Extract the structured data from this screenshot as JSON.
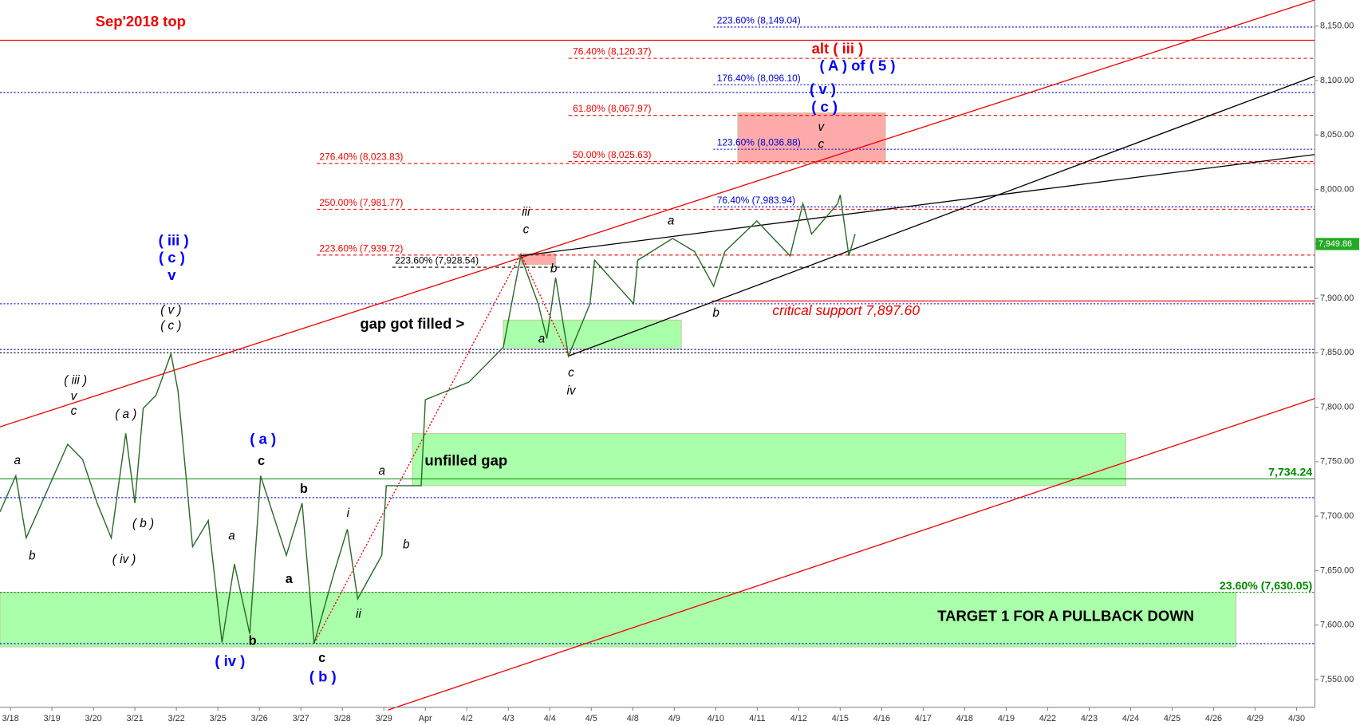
{
  "chart_data": {
    "type": "line",
    "xlim": [
      -0.251,
      31.44
    ],
    "xticks": [
      {
        "value": 0,
        "label": "3/18"
      },
      {
        "value": 1,
        "label": "3/19"
      },
      {
        "value": 2,
        "label": "3/20"
      },
      {
        "value": 3,
        "label": "3/21"
      },
      {
        "value": 4,
        "label": "3/22"
      },
      {
        "value": 5,
        "label": "3/25"
      },
      {
        "value": 6,
        "label": "3/26"
      },
      {
        "value": 7,
        "label": "3/27"
      },
      {
        "value": 8,
        "label": "3/28"
      },
      {
        "value": 9,
        "label": "3/29"
      },
      {
        "value": 10,
        "label": "Apr"
      },
      {
        "value": 11,
        "label": "4/2"
      },
      {
        "value": 12,
        "label": "4/3"
      },
      {
        "value": 13,
        "label": "4/4"
      },
      {
        "value": 14,
        "label": "4/5"
      },
      {
        "value": 15,
        "label": "4/8"
      },
      {
        "value": 16,
        "label": "4/9"
      },
      {
        "value": 17,
        "label": "4/10"
      },
      {
        "value": 18,
        "label": "4/11"
      },
      {
        "value": 19,
        "label": "4/12"
      },
      {
        "value": 20,
        "label": "4/15"
      },
      {
        "value": 21,
        "label": "4/16"
      },
      {
        "value": 22,
        "label": "4/17"
      },
      {
        "value": 23,
        "label": "4/18"
      },
      {
        "value": 24,
        "label": "4/19"
      },
      {
        "value": 25,
        "label": "4/22"
      },
      {
        "value": 26,
        "label": "4/23"
      },
      {
        "value": 27,
        "label": "4/24"
      },
      {
        "value": 28,
        "label": "4/25"
      },
      {
        "value": 29,
        "label": "4/26"
      },
      {
        "value": 30,
        "label": "4/29"
      },
      {
        "value": 31,
        "label": "4/30"
      }
    ],
    "ylim": [
      7524.5,
      8173.9
    ],
    "yticks": [
      {
        "value": 7550,
        "label": "7,550.00"
      },
      {
        "value": 7600,
        "label": "7,600.00"
      },
      {
        "value": 7650,
        "label": "7,650.00"
      },
      {
        "value": 7700,
        "label": "7,700.00"
      },
      {
        "value": 7750,
        "label": "7,750.00"
      },
      {
        "value": 7800,
        "label": "7,800.00"
      },
      {
        "value": 7850,
        "label": "7,850.00"
      },
      {
        "value": 7900,
        "label": "7,900.00"
      },
      {
        "value": 7950,
        "label": "7,950.00"
      },
      {
        "value": 8000,
        "label": "8,000.00"
      },
      {
        "value": 8050,
        "label": "8,050.00"
      },
      {
        "value": 8100,
        "label": "8,100.00"
      },
      {
        "value": 8150,
        "label": "8,150.00"
      }
    ],
    "series": [
      {
        "color": "#2a6a2a",
        "x": [
          -0.25,
          0.13,
          0.38,
          0.8,
          1.38,
          1.74,
          2.09,
          2.43,
          2.78,
          3.0,
          3.2,
          3.51,
          3.87,
          4.04,
          4.39,
          4.77,
          5.1,
          5.4,
          5.77,
          6.03,
          6.65,
          7.03,
          7.32,
          7.8,
          8.12,
          8.37,
          8.95,
          9.06,
          9.9,
          10.0,
          11.05,
          11.88,
          12.3,
          12.72,
          12.93,
          13.14,
          13.45,
          13.97,
          14.08,
          15.02,
          15.12,
          15.96,
          16.49,
          16.95,
          17.22,
          17.99,
          18.79,
          19.1,
          19.31,
          19.94,
          20.0,
          20.21,
          20.36
        ],
        "values": [
          7704,
          7737,
          7680,
          7716,
          7766,
          7752,
          7712,
          7680,
          7776,
          7712,
          7799,
          7811,
          7849,
          7815,
          7672,
          7696,
          7584,
          7656,
          7592,
          7737,
          7664,
          7712,
          7583,
          7648,
          7688,
          7624,
          7664,
          7728,
          7728,
          7807,
          7823,
          7855,
          7939,
          7895,
          7863,
          7919,
          7847,
          7895,
          7935,
          7895,
          7935,
          7955,
          7943,
          7911,
          7943,
          7971,
          7939,
          7987,
          7959,
          7987,
          7995,
          7939,
          7959
        ]
      }
    ],
    "last_price": {
      "value": 7949.86,
      "label": "7,949.86",
      "color": "#22aa22"
    },
    "levels": [
      {
        "value": 8149.04,
        "color": "#0000cc",
        "style": "dotted",
        "label": "223.60% (8,149.04)"
      },
      {
        "value": 8137,
        "color": "#ee0000",
        "style": "solid"
      },
      {
        "value": 8120.37,
        "color": "#ee0000",
        "style": "dashed",
        "label": "76.40% (8,120.37)"
      },
      {
        "value": 8096.1,
        "color": "#0000cc",
        "style": "dotted",
        "label": "176.40% (8,096.10)"
      },
      {
        "value": 8089,
        "color": "#0000cc",
        "style": "dotted"
      },
      {
        "value": 8067.97,
        "color": "#ee0000",
        "style": "dashed",
        "label": "61.80% (8,067.97)"
      },
      {
        "value": 8036.88,
        "color": "#0000cc",
        "style": "dotted",
        "label": "123.60% (8,036.88)"
      },
      {
        "value": 8025.63,
        "color": "#ee0000",
        "style": "dashed",
        "label": "50.00% (8,025.63)"
      },
      {
        "value": 8023.83,
        "color": "#ee0000",
        "style": "dashed",
        "label": "276.40% (8,023.83)"
      },
      {
        "value": 7983.94,
        "color": "#0000cc",
        "style": "dotted",
        "label": "76.40% (7,983.94)"
      },
      {
        "value": 7981.77,
        "color": "#ee0000",
        "style": "dashed",
        "label": "250.00% (7,981.77)"
      },
      {
        "value": 7939.72,
        "color": "#ee0000",
        "style": "dashed",
        "label": "223.60% (7,939.72)"
      },
      {
        "value": 7928.54,
        "color": "#000000",
        "style": "dashed",
        "label": "223.60% (7,928.54)"
      },
      {
        "value": 7897.6,
        "color": "#ee0000",
        "style": "solid",
        "label": "critical support 7,897.60"
      },
      {
        "value": 7895,
        "color": "#0000cc",
        "style": "dotted"
      },
      {
        "value": 7853,
        "color": "#0000cc",
        "style": "dotted"
      },
      {
        "value": 7850,
        "color": "#000000",
        "style": "dotted"
      },
      {
        "value": 7734.24,
        "color": "#008800",
        "style": "solid",
        "label": "7,734.24"
      },
      {
        "value": 7717,
        "color": "#0000cc",
        "style": "dotted"
      },
      {
        "value": 7630.05,
        "color": "#008800",
        "style": "dotted",
        "label": "23.60% (7,630.05)"
      },
      {
        "value": 7583,
        "color": "#0000cc",
        "style": "dotted"
      }
    ],
    "zones": [
      {
        "x": [
          17.53,
          21.09
        ],
        "y": [
          8024.9,
          8070.3
        ],
        "color": "#ffaaaa"
      },
      {
        "x": [
          12.3,
          13.14
        ],
        "y": [
          7931,
          7941
        ],
        "color": "#ffaaaa"
      },
      {
        "x": [
          11.88,
          16.17
        ],
        "y": [
          7854,
          7880
        ],
        "color": "#aaffaa"
      },
      {
        "x": [
          9.69,
          26.88
        ],
        "y": [
          7728,
          7776
        ],
        "color": "#aaffaa"
      },
      {
        "x": [
          -0.25,
          29.54
        ],
        "y": [
          7580,
          7630
        ],
        "color": "#aaffaa"
      }
    ],
    "trendlines": [
      {
        "x": [
          -0.251,
          31.44
        ],
        "y": [
          7782,
          8174
        ],
        "color": "#ee0000",
        "style": "solid"
      },
      {
        "x": [
          9.1,
          31.44
        ],
        "y": [
          7522,
          7808
        ],
        "color": "#ee0000",
        "style": "solid"
      },
      {
        "x": [
          13.45,
          31.44
        ],
        "y": [
          7847,
          8104
        ],
        "color": "#000000",
        "style": "solid"
      },
      {
        "x": [
          12.3,
          31.44
        ],
        "y": [
          7939,
          8032
        ],
        "color": "#000000",
        "style": "solid"
      },
      {
        "x": [
          7.32,
          12.3
        ],
        "y": [
          7583,
          7941
        ],
        "color": "#ee0000",
        "style": "dotted"
      },
      {
        "x": [
          12.3,
          13.45
        ],
        "y": [
          7941,
          7847
        ],
        "color": "#ee0000",
        "style": "dotted"
      }
    ],
    "annotations": [
      "( iii )",
      "( c )",
      "v",
      "( a )",
      "( iv )",
      "( b )",
      "( A ) of ( 5 )",
      "( v )",
      "( c )",
      "alt ( iii )",
      "Sep'2018 top",
      "( v )",
      "( c )",
      "( iii )",
      "v",
      "c",
      "( a )",
      "a",
      "b",
      "( b )",
      "( iv )",
      "iii",
      "c",
      "b",
      "a",
      "c",
      "iv",
      "a",
      "b",
      "v",
      "c",
      "a",
      "b",
      "i",
      "ii",
      "a",
      "c",
      "b",
      "a",
      "b",
      "c",
      "gap got filled >",
      "unfilled gap",
      "TARGET 1 FOR A PULLBACK DOWN"
    ]
  }
}
